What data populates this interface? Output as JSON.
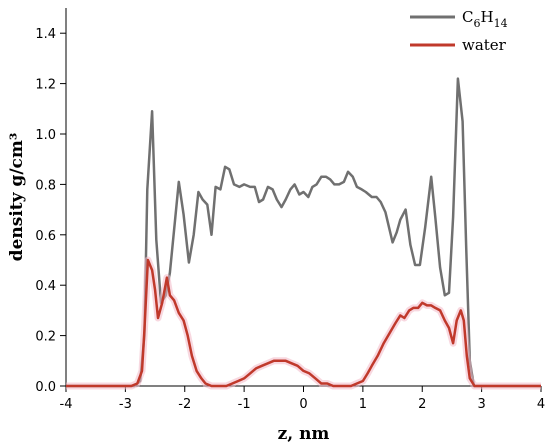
{
  "chart_data": {
    "type": "line",
    "xlabel": "z, nm",
    "ylabel": "density g/cm³",
    "xlim": [
      -4,
      4
    ],
    "ylim": [
      0,
      1.5
    ],
    "xticks": [
      -4,
      -3,
      -2,
      -1,
      0,
      1,
      2,
      3,
      4
    ],
    "yticks": [
      0.0,
      0.2,
      0.4,
      0.6,
      0.8,
      1.0,
      1.2,
      1.4
    ],
    "ytick_labels": [
      "0.0",
      "0.2",
      "0.4",
      "0.6",
      "0.8",
      "1.0",
      "1.2",
      "1.4"
    ],
    "legend": "top-right",
    "grid": false,
    "series": [
      {
        "name": "C6H14",
        "name_base": "C",
        "name_sub1": "6",
        "name_mid": "H",
        "name_sub2": "14",
        "color": "#707070",
        "points": [
          [
            -4.0,
            0.0
          ],
          [
            -2.85,
            0.0
          ],
          [
            -2.75,
            0.02
          ],
          [
            -2.68,
            0.2
          ],
          [
            -2.63,
            0.78
          ],
          [
            -2.55,
            1.09
          ],
          [
            -2.48,
            0.58
          ],
          [
            -2.4,
            0.33
          ],
          [
            -2.32,
            0.36
          ],
          [
            -2.25,
            0.45
          ],
          [
            -2.1,
            0.81
          ],
          [
            -2.02,
            0.68
          ],
          [
            -1.93,
            0.49
          ],
          [
            -1.85,
            0.6
          ],
          [
            -1.77,
            0.77
          ],
          [
            -1.7,
            0.74
          ],
          [
            -1.62,
            0.72
          ],
          [
            -1.55,
            0.6
          ],
          [
            -1.48,
            0.79
          ],
          [
            -1.4,
            0.78
          ],
          [
            -1.32,
            0.87
          ],
          [
            -1.25,
            0.86
          ],
          [
            -1.17,
            0.8
          ],
          [
            -1.08,
            0.79
          ],
          [
            -1.0,
            0.8
          ],
          [
            -0.9,
            0.79
          ],
          [
            -0.82,
            0.79
          ],
          [
            -0.75,
            0.73
          ],
          [
            -0.68,
            0.74
          ],
          [
            -0.6,
            0.79
          ],
          [
            -0.52,
            0.78
          ],
          [
            -0.45,
            0.74
          ],
          [
            -0.37,
            0.71
          ],
          [
            -0.3,
            0.74
          ],
          [
            -0.22,
            0.78
          ],
          [
            -0.15,
            0.8
          ],
          [
            -0.07,
            0.76
          ],
          [
            0.0,
            0.77
          ],
          [
            0.08,
            0.75
          ],
          [
            0.15,
            0.79
          ],
          [
            0.22,
            0.8
          ],
          [
            0.3,
            0.83
          ],
          [
            0.38,
            0.83
          ],
          [
            0.45,
            0.82
          ],
          [
            0.52,
            0.8
          ],
          [
            0.6,
            0.8
          ],
          [
            0.68,
            0.81
          ],
          [
            0.75,
            0.85
          ],
          [
            0.83,
            0.83
          ],
          [
            0.9,
            0.79
          ],
          [
            0.98,
            0.78
          ],
          [
            1.05,
            0.77
          ],
          [
            1.15,
            0.75
          ],
          [
            1.23,
            0.75
          ],
          [
            1.3,
            0.73
          ],
          [
            1.38,
            0.69
          ],
          [
            1.45,
            0.62
          ],
          [
            1.5,
            0.57
          ],
          [
            1.57,
            0.61
          ],
          [
            1.63,
            0.66
          ],
          [
            1.72,
            0.7
          ],
          [
            1.8,
            0.56
          ],
          [
            1.88,
            0.48
          ],
          [
            1.96,
            0.48
          ],
          [
            2.05,
            0.63
          ],
          [
            2.15,
            0.83
          ],
          [
            2.22,
            0.67
          ],
          [
            2.3,
            0.47
          ],
          [
            2.38,
            0.36
          ],
          [
            2.45,
            0.37
          ],
          [
            2.52,
            0.67
          ],
          [
            2.6,
            1.22
          ],
          [
            2.68,
            1.05
          ],
          [
            2.74,
            0.55
          ],
          [
            2.8,
            0.1
          ],
          [
            2.87,
            0.0
          ],
          [
            4.0,
            0.0
          ]
        ]
      },
      {
        "name": "water",
        "color": "#c0392b",
        "points": [
          [
            -4.0,
            0.0
          ],
          [
            -2.9,
            0.0
          ],
          [
            -2.8,
            0.01
          ],
          [
            -2.72,
            0.06
          ],
          [
            -2.68,
            0.22
          ],
          [
            -2.62,
            0.5
          ],
          [
            -2.55,
            0.46
          ],
          [
            -2.5,
            0.38
          ],
          [
            -2.45,
            0.27
          ],
          [
            -2.38,
            0.33
          ],
          [
            -2.3,
            0.43
          ],
          [
            -2.25,
            0.36
          ],
          [
            -2.18,
            0.34
          ],
          [
            -2.1,
            0.29
          ],
          [
            -2.02,
            0.26
          ],
          [
            -1.95,
            0.2
          ],
          [
            -1.88,
            0.12
          ],
          [
            -1.8,
            0.06
          ],
          [
            -1.72,
            0.03
          ],
          [
            -1.65,
            0.01
          ],
          [
            -1.55,
            0.0
          ],
          [
            -1.3,
            0.0
          ],
          [
            -1.2,
            0.01
          ],
          [
            -1.1,
            0.02
          ],
          [
            -1.0,
            0.03
          ],
          [
            -0.9,
            0.05
          ],
          [
            -0.8,
            0.07
          ],
          [
            -0.7,
            0.08
          ],
          [
            -0.6,
            0.09
          ],
          [
            -0.5,
            0.1
          ],
          [
            -0.4,
            0.1
          ],
          [
            -0.3,
            0.1
          ],
          [
            -0.2,
            0.09
          ],
          [
            -0.1,
            0.08
          ],
          [
            0.0,
            0.06
          ],
          [
            0.1,
            0.05
          ],
          [
            0.2,
            0.03
          ],
          [
            0.3,
            0.01
          ],
          [
            0.4,
            0.01
          ],
          [
            0.5,
            0.0
          ],
          [
            0.8,
            0.0
          ],
          [
            0.9,
            0.01
          ],
          [
            1.0,
            0.02
          ],
          [
            1.08,
            0.05
          ],
          [
            1.15,
            0.08
          ],
          [
            1.25,
            0.12
          ],
          [
            1.35,
            0.17
          ],
          [
            1.45,
            0.21
          ],
          [
            1.55,
            0.25
          ],
          [
            1.63,
            0.28
          ],
          [
            1.7,
            0.27
          ],
          [
            1.78,
            0.3
          ],
          [
            1.85,
            0.31
          ],
          [
            1.93,
            0.31
          ],
          [
            2.0,
            0.33
          ],
          [
            2.08,
            0.32
          ],
          [
            2.15,
            0.32
          ],
          [
            2.22,
            0.31
          ],
          [
            2.3,
            0.3
          ],
          [
            2.38,
            0.26
          ],
          [
            2.45,
            0.23
          ],
          [
            2.52,
            0.17
          ],
          [
            2.58,
            0.26
          ],
          [
            2.65,
            0.3
          ],
          [
            2.7,
            0.26
          ],
          [
            2.75,
            0.12
          ],
          [
            2.8,
            0.03
          ],
          [
            2.88,
            0.0
          ],
          [
            4.0,
            0.0
          ]
        ]
      }
    ]
  }
}
